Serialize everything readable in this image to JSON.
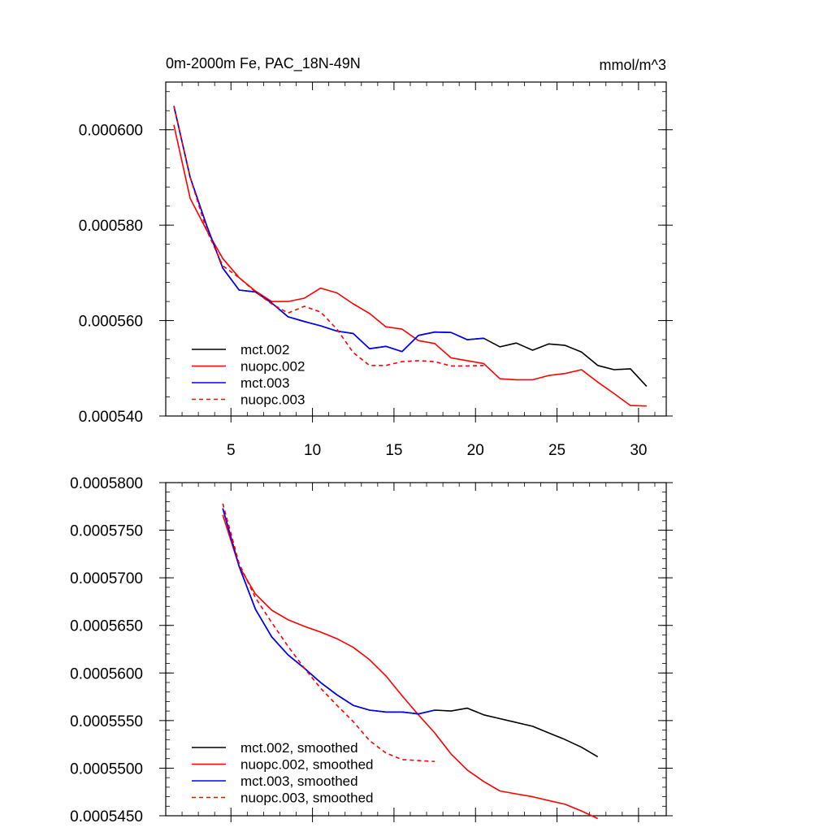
{
  "chart_data": [
    {
      "type": "line",
      "title": "0m-2000m Fe, PAC_18N-49N",
      "units": "mmol/m^3",
      "xlim": [
        1.0,
        31.7
      ],
      "ylim": [
        0.00054,
        0.00061
      ],
      "x_ticks": [
        5,
        10,
        15,
        20,
        25,
        30
      ],
      "y_ticks": [
        0.00054,
        0.00056,
        0.00058,
        0.0006
      ],
      "y_tick_labels": [
        "0.000540",
        "0.000560",
        "0.000580",
        "0.000600"
      ],
      "legend_position": "bottom-left",
      "series": [
        {
          "name": "mct.002",
          "color": "#000000",
          "dash": "solid",
          "x": [
            1.5,
            2.5,
            3.5,
            4.5,
            5.5,
            6.5,
            7.5,
            8.5,
            9.5,
            10.5,
            11.5,
            12.5,
            13.5,
            14.5,
            15.5,
            16.5,
            17.5,
            18.5,
            19.5,
            20.5,
            21.5,
            22.5,
            23.5,
            24.5,
            25.5,
            26.5,
            27.5,
            28.5,
            29.5,
            30.5
          ],
          "y": [
            0.000605,
            0.00059,
            0.00058,
            0.000571,
            0.0005664,
            0.000566,
            0.0005637,
            0.0005608,
            0.0005598,
            0.0005589,
            0.0005578,
            0.0005573,
            0.0005541,
            0.0005546,
            0.0005535,
            0.0005569,
            0.0005576,
            0.0005575,
            0.000556,
            0.0005563,
            0.0005545,
            0.0005553,
            0.0005538,
            0.0005551,
            0.0005548,
            0.0005534,
            0.0005506,
            0.0005497,
            0.0005499,
            0.0005462
          ]
        },
        {
          "name": "nuopc.002",
          "color": "#ff0000",
          "dash": "solid",
          "x": [
            1.5,
            2.5,
            3.5,
            4.5,
            5.5,
            6.5,
            7.5,
            8.5,
            9.5,
            10.5,
            11.5,
            12.5,
            13.5,
            14.5,
            15.5,
            16.5,
            17.5,
            18.5,
            19.5,
            20.5,
            21.5,
            22.5,
            23.5,
            24.5,
            25.5,
            26.5,
            27.5,
            28.5,
            29.5,
            30.5
          ],
          "y": [
            0.000601,
            0.0005856,
            0.000579,
            0.000573,
            0.000569,
            0.0005662,
            0.000564,
            0.000564,
            0.0005647,
            0.0005668,
            0.0005658,
            0.0005635,
            0.0005615,
            0.0005587,
            0.0005582,
            0.0005558,
            0.0005552,
            0.0005522,
            0.0005516,
            0.000551,
            0.0005478,
            0.0005476,
            0.0005476,
            0.0005485,
            0.0005489,
            0.0005497,
            0.0005471,
            0.0005447,
            0.0005422,
            0.0005421
          ]
        },
        {
          "name": "mct.003",
          "color": "#0000ff",
          "dash": "solid",
          "x": [
            1.5,
            2.5,
            3.5,
            4.5,
            5.5,
            6.5,
            7.5,
            8.5,
            9.5,
            10.5,
            11.5,
            12.5,
            13.5,
            14.5,
            15.5,
            16.5,
            17.5,
            18.5,
            19.5,
            20.5
          ],
          "y": [
            0.000605,
            0.00059,
            0.00058,
            0.000571,
            0.0005664,
            0.000566,
            0.0005637,
            0.0005608,
            0.0005598,
            0.0005589,
            0.0005578,
            0.0005573,
            0.0005541,
            0.0005546,
            0.0005535,
            0.0005569,
            0.0005576,
            0.0005575,
            0.000556,
            0.0005563
          ]
        },
        {
          "name": "nuopc.003",
          "color": "#ff0000",
          "dash": "dashed",
          "x": [
            1.5,
            2.5,
            3.5,
            4.5,
            5.5,
            6.5,
            7.5,
            8.5,
            9.5,
            10.5,
            11.5,
            12.5,
            13.5,
            14.5,
            15.5,
            16.5,
            17.5,
            18.5,
            19.5,
            20.5
          ],
          "y": [
            0.000605,
            0.00059,
            0.000579,
            0.0005715,
            0.000569,
            0.000566,
            0.0005635,
            0.0005616,
            0.000563,
            0.0005618,
            0.0005582,
            0.0005533,
            0.0005506,
            0.0005506,
            0.0005514,
            0.0005516,
            0.0005514,
            0.0005505,
            0.0005505,
            0.0005506
          ]
        }
      ]
    },
    {
      "type": "line",
      "xlim": [
        1.0,
        31.7
      ],
      "ylim": [
        0.000545,
        0.00058
      ],
      "x_ticks": [
        5,
        10,
        15,
        20,
        25,
        30
      ],
      "y_ticks": [
        0.000545,
        0.00055,
        0.000555,
        0.00056,
        0.000565,
        0.00057,
        0.000575,
        0.00058
      ],
      "y_tick_labels": [
        "0.0005450",
        "0.0005500",
        "0.0005550",
        "0.0005600",
        "0.0005650",
        "0.0005700",
        "0.0005750",
        "0.0005800"
      ],
      "legend_position": "bottom-left",
      "series": [
        {
          "name": "mct.002, smoothed",
          "color": "#000000",
          "dash": "solid",
          "x": [
            4.5,
            5.5,
            6.5,
            7.5,
            8.5,
            9.5,
            10.5,
            11.5,
            12.5,
            13.5,
            14.5,
            15.5,
            16.5,
            17.5,
            18.5,
            19.5,
            20.5,
            21.5,
            22.5,
            23.5,
            24.5,
            25.5,
            26.5,
            27.5
          ],
          "y": [
            0.0005773,
            0.0005712,
            0.0005667,
            0.0005638,
            0.0005619,
            0.0005605,
            0.000559,
            0.0005577,
            0.0005566,
            0.0005561,
            0.0005559,
            0.0005559,
            0.0005557,
            0.0005561,
            0.000556,
            0.0005563,
            0.0005556,
            0.0005552,
            0.0005548,
            0.0005544,
            0.0005537,
            0.000553,
            0.0005522,
            0.0005512
          ]
        },
        {
          "name": "nuopc.002, smoothed",
          "color": "#ff0000",
          "dash": "solid",
          "x": [
            4.5,
            5.5,
            6.5,
            7.5,
            8.5,
            9.5,
            10.5,
            11.5,
            12.5,
            13.5,
            14.5,
            15.5,
            16.5,
            17.5,
            18.5,
            19.5,
            20.5,
            21.5,
            22.5,
            23.5,
            24.5,
            25.5,
            26.5,
            27.5
          ],
          "y": [
            0.0005766,
            0.0005712,
            0.0005683,
            0.0005666,
            0.0005656,
            0.0005649,
            0.0005643,
            0.0005636,
            0.0005627,
            0.0005614,
            0.0005597,
            0.0005576,
            0.0005556,
            0.0005537,
            0.0005515,
            0.0005498,
            0.0005486,
            0.0005476,
            0.0005473,
            0.000547,
            0.0005466,
            0.0005462,
            0.0005455,
            0.0005447
          ]
        },
        {
          "name": "mct.003, smoothed",
          "color": "#0000ff",
          "dash": "solid",
          "x": [
            4.5,
            5.5,
            6.5,
            7.5,
            8.5,
            9.5,
            10.5,
            11.5,
            12.5,
            13.5,
            14.5,
            15.5,
            16.5,
            17.5
          ],
          "y": [
            0.0005773,
            0.0005712,
            0.0005667,
            0.0005638,
            0.0005619,
            0.0005605,
            0.000559,
            0.0005577,
            0.0005566,
            0.0005561,
            0.0005559,
            0.0005559,
            0.0005557,
            0.0005561
          ]
        },
        {
          "name": "nuopc.003, smoothed",
          "color": "#ff0000",
          "dash": "dashed",
          "x": [
            4.5,
            5.5,
            6.5,
            7.5,
            8.5,
            9.5,
            10.5,
            11.5,
            12.5,
            13.5,
            14.5,
            15.5,
            16.5,
            17.5
          ],
          "y": [
            0.0005778,
            0.0005715,
            0.0005679,
            0.0005653,
            0.0005628,
            0.0005605,
            0.0005584,
            0.0005566,
            0.0005549,
            0.0005529,
            0.0005516,
            0.0005509,
            0.0005508,
            0.0005507
          ]
        }
      ]
    }
  ]
}
